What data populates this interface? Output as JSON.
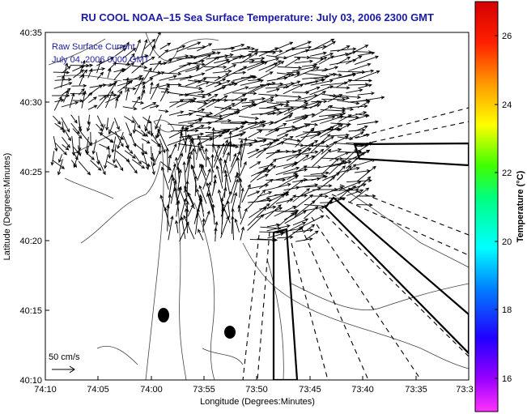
{
  "title": "RU COOL  NOAA–15  Sea Surface Temperature:  July 03, 2006 2300 GMT",
  "legend": {
    "current_label": "Raw Surface Current",
    "current_time": "July 04, 2006  0000 GMT",
    "scale_label": "50 cm/s"
  },
  "x_axis": {
    "label": "Longitude (Degrees:Minutes)",
    "ticks": [
      "74:10",
      "74:05",
      "74:00",
      "73:55",
      "73:50",
      "73:45",
      "73:40",
      "73:35",
      "73:3"
    ]
  },
  "y_axis": {
    "label": "Latitude (Degrees:Minutes)",
    "ticks": [
      "40:35",
      "40:30",
      "40:25",
      "40:20",
      "40:15",
      "40:10"
    ]
  },
  "colorbar": {
    "label": "Temperature (°C)",
    "ticks": [
      "26",
      "24",
      "22",
      "20",
      "18",
      "16"
    ]
  },
  "colors": {
    "title": "#1a1aa6",
    "land": "#ffffff",
    "arrows": "#000000"
  },
  "chart_data": {
    "type": "vector-map",
    "x_range": [
      "74:10",
      "73:30"
    ],
    "y_range": [
      "40:10",
      "40:35"
    ],
    "colorbar_range": [
      15,
      27
    ]
  }
}
